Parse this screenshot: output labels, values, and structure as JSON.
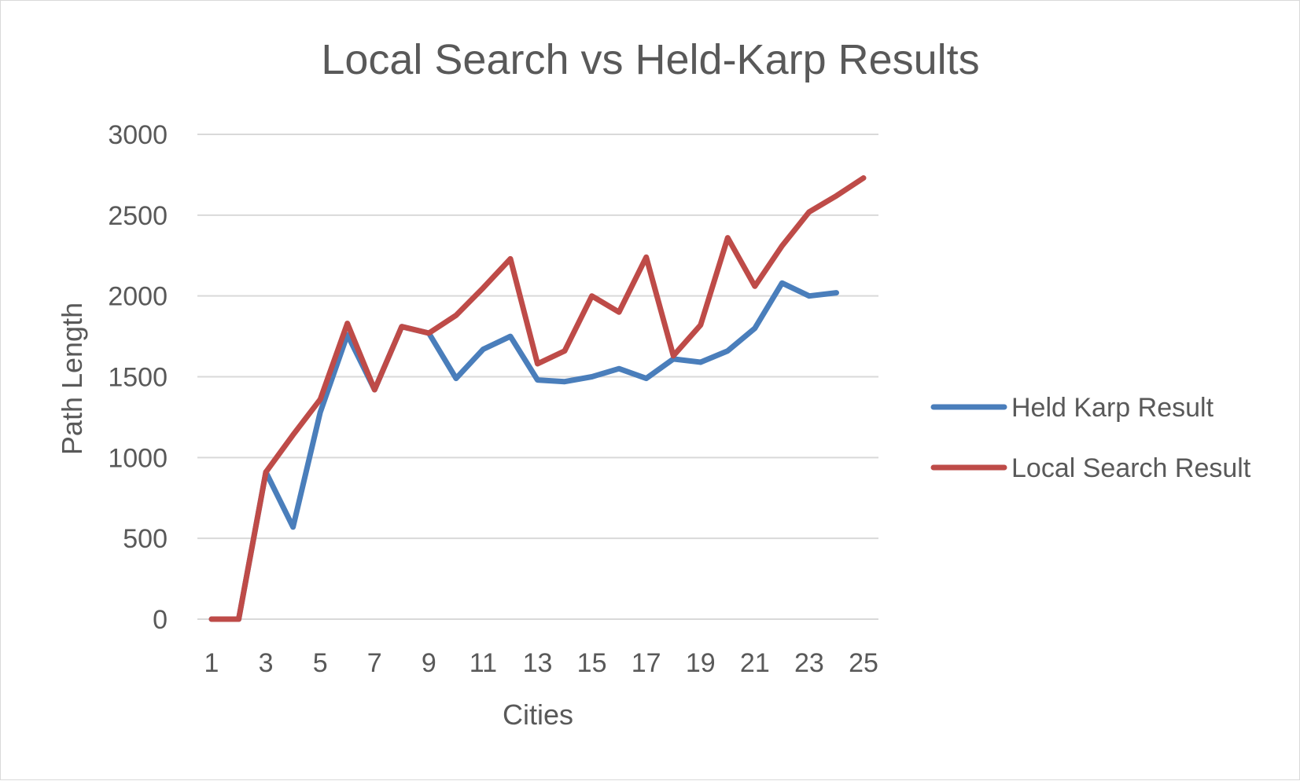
{
  "chart_data": {
    "type": "line",
    "title": "Local Search vs Held-Karp Results",
    "xlabel": "Cities",
    "ylabel": "Path Length",
    "x": [
      1,
      2,
      3,
      4,
      5,
      6,
      7,
      8,
      9,
      10,
      11,
      12,
      13,
      14,
      15,
      16,
      17,
      18,
      19,
      20,
      21,
      22,
      23,
      24,
      25
    ],
    "x_tick_labels": [
      "1",
      "3",
      "5",
      "7",
      "9",
      "11",
      "13",
      "15",
      "17",
      "19",
      "21",
      "23",
      "25"
    ],
    "ylim": [
      0,
      3000
    ],
    "y_ticks": [
      0,
      500,
      1000,
      1500,
      2000,
      2500,
      3000
    ],
    "grid": "horizontal",
    "legend_position": "right",
    "series": [
      {
        "name": "Held Karp Result",
        "color": "#4a7ebb",
        "values": [
          0,
          0,
          910,
          570,
          1280,
          1760,
          1420,
          1810,
          1770,
          1490,
          1670,
          1750,
          1480,
          1470,
          1500,
          1550,
          1490,
          1610,
          1590,
          1660,
          1800,
          2080,
          2000,
          2020,
          null
        ]
      },
      {
        "name": "Local Search Result",
        "color": "#be4b48",
        "values": [
          0,
          0,
          910,
          1140,
          1360,
          1830,
          1420,
          1810,
          1770,
          1880,
          2050,
          2230,
          1580,
          1660,
          2000,
          1900,
          2240,
          1630,
          1820,
          2360,
          2060,
          2310,
          2520,
          2620,
          2730
        ]
      }
    ]
  }
}
